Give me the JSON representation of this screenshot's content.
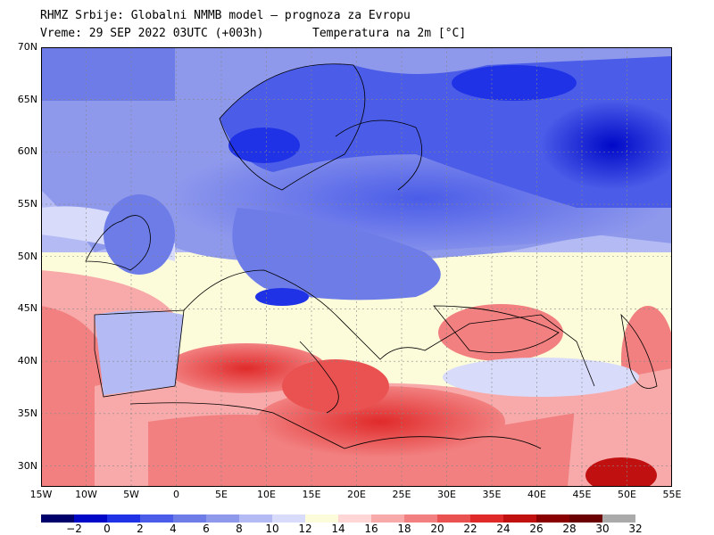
{
  "header": {
    "line1": "RHMZ Srbije: Globalni NMMB model — prognoza za Evropu",
    "line2": "Vreme: 29 SEP 2022 03UTC (+003h)",
    "line3": "Temperatura na 2m [°C]"
  },
  "map": {
    "lon_range": [
      -15,
      55
    ],
    "lat_range": [
      28,
      70
    ],
    "grid": true,
    "y_ticks": [
      "70N",
      "65N",
      "60N",
      "55N",
      "50N",
      "45N",
      "40N",
      "35N",
      "30N"
    ],
    "x_ticks": [
      "15W",
      "10W",
      "5W",
      "0",
      "5E",
      "10E",
      "15E",
      "20E",
      "25E",
      "30E",
      "35E",
      "40E",
      "45E",
      "50E",
      "55E"
    ],
    "field": "temperature_2m"
  },
  "colorbar": {
    "colors": [
      "#00006a",
      "#0008c8",
      "#1f32e6",
      "#4a5ce8",
      "#6e7ce8",
      "#8f99ec",
      "#b4bbf4",
      "#d8dcfa",
      "#fcfcda",
      "#ffd6d6",
      "#f8aaaa",
      "#f28080",
      "#ea5252",
      "#e02a2a",
      "#c01010",
      "#8a0000",
      "#6a0000",
      "#aaaaaa"
    ],
    "labels": [
      "−2",
      "0",
      "2",
      "4",
      "6",
      "8",
      "10",
      "12",
      "14",
      "16",
      "18",
      "20",
      "22",
      "24",
      "26",
      "28",
      "30",
      "32"
    ]
  }
}
